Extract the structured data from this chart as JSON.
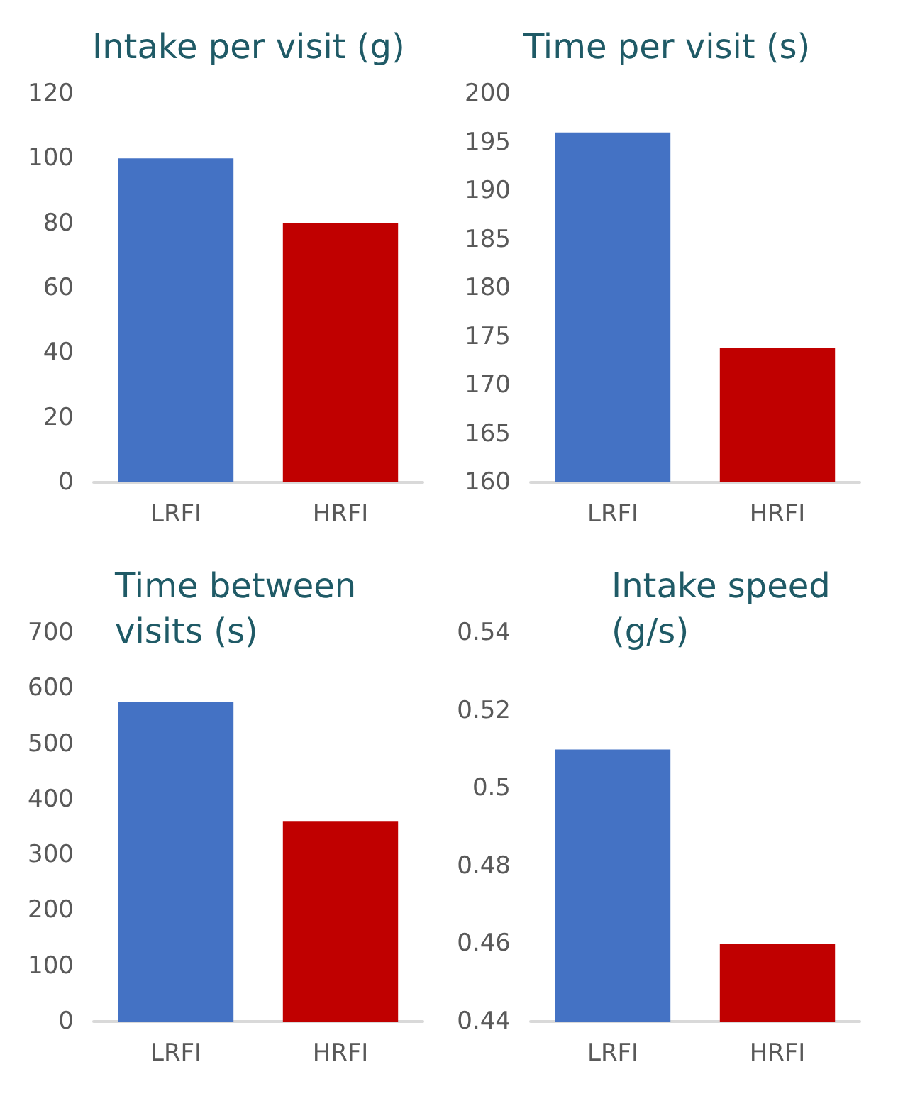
{
  "chart_data": [
    {
      "type": "bar",
      "title": "Intake per visit (g)",
      "categories": [
        "LRFI",
        "HRFI"
      ],
      "values": [
        100,
        80
      ],
      "colors": [
        "#4472c4",
        "#c00000"
      ],
      "ylim": [
        0,
        120
      ],
      "yticks": [
        0,
        20,
        40,
        60,
        80,
        100,
        120
      ]
    },
    {
      "type": "bar",
      "title": "Time per visit (s)",
      "categories": [
        "LRFI",
        "HRFI"
      ],
      "values": [
        196,
        173.8
      ],
      "colors": [
        "#4472c4",
        "#c00000"
      ],
      "ylim": [
        160,
        200
      ],
      "yticks": [
        160,
        165,
        170,
        175,
        180,
        185,
        190,
        195,
        200
      ]
    },
    {
      "type": "bar",
      "title": "Time between visits (s)",
      "categories": [
        "LRFI",
        "HRFI"
      ],
      "values": [
        575,
        360
      ],
      "colors": [
        "#4472c4",
        "#c00000"
      ],
      "ylim": [
        0,
        700
      ],
      "yticks": [
        0,
        100,
        200,
        300,
        400,
        500,
        600,
        700
      ]
    },
    {
      "type": "bar",
      "title": "Intake speed (g/s)",
      "categories": [
        "LRFI",
        "HRFI"
      ],
      "values": [
        0.51,
        0.46
      ],
      "colors": [
        "#4472c4",
        "#c00000"
      ],
      "ylim": [
        0.44,
        0.54
      ],
      "yticks": [
        0.44,
        0.46,
        0.48,
        0.5,
        0.52,
        0.54
      ]
    }
  ]
}
